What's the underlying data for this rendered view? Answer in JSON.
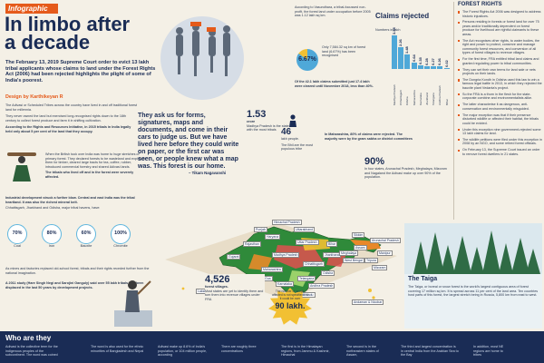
{
  "header": {
    "tag": "Infographic",
    "title_line1": "In limbo after",
    "title_line2": "a decade",
    "subtitle": "The February 13, 2019 Supreme Court order to evict 13 lakh tribal applicants whose claims to land under the Forest Rights Act (2006) had been rejected highlights the plight of some of India's poorest.",
    "byline": "Design by Karthikeyan R"
  },
  "intro": {
    "p1": "The Adivasi or Scheduled Tribes across the country have lived in and off traditional forest land for millennia.",
    "p2": "They never owned the land but exercised long-recognised rights down to the 18th century to collect forest produce and farm it in shifting cultivation.",
    "p3_bold": "According to the Rights and Resources Initiative, in 2015 tribals in India legally held only about 5 per cent of the land that they occupy."
  },
  "quote": {
    "text": "They ask us for forms, signatures, maps and documents, and come in their cars to judge us. But we have lived here before they could write on paper, or the first car was seen, or people knew what a map was. This forest is our home.",
    "attribution": "– Tikam Nagavanshi"
  },
  "stats_top": {
    "pct": "6.67%",
    "p1": "According to Vasundhara, a tribal-focussed non-profit, the forest land under occupation before 2005 was 1.12 lakh sq km.",
    "p2": "Only 7,584.32 sq km of forest land (6.67%) has been recognised",
    "p3": "Of the 42.1 lakh claims submitted just 17.4 lakh were cleared until November 2018, less than 40%."
  },
  "claims": {
    "title": "Claims rejected",
    "units": "Numbers in lakh"
  },
  "chart_data": {
    "type": "bar",
    "title": "Claims rejected",
    "ylabel": "Numbers in lakh",
    "categories": [
      "Madhya Pradesh",
      "Chhattisgarh",
      "Odisha",
      "Maharashtra",
      "Karnataka",
      "Jharkhand",
      "Telangana",
      "Andhra Pradesh",
      "Bihar"
    ],
    "values": [
      3.55,
      2.26,
      1.48,
      0.64,
      0.35,
      0.28,
      0.27,
      0.26,
      0.02
    ],
    "value_labels": [
      "3.55",
      "2.26",
      "1.48",
      "0.64",
      "0.35",
      "0.28",
      "0.27",
      "0.26",
      "0.02"
    ]
  },
  "forest_rights": {
    "title": "FOREST RIGHTS",
    "items": [
      "The Forest Rights Act 2006 was designed to address historic injustices.",
      "Persons residing in forests or forest land for over 75 years and/or traditionally dependent on forest produce for livelihood are rightful claimants to these areas.",
      "The Act recognises other rights, to water bodies, the right and power to protect, conserve and manage community forest resources, and conversion of all types of forest villages to revenue villages.",
      "For the first time, FRA entitled tribal land claims and granted regulating power to tribal communities.",
      "They can set their own terms for land sale or nets projects on their lands.",
      "The Dongria Kondh in Odisha used this law to win a famous legal battle in 2013, in which they rejected the bauxite plant Vedanta's project.",
      "So the FRA is a thorn in the flesh for the state-corporate combine and environmentalists alike.",
      "The latter characterise it as dangerous, anti-conservation and environmentally misguided.",
      "The major exception was that if their presence disturbed wildlife or affected their habitat, the tribals could be evicted.",
      "Under this exception nine government-rejected some 13 lakh claims for land.",
      "The wildlife petitions were filed under this exception in 2008 by an NGO, and some retired forest officials.",
      "On February 13, the Supreme Court issued an order to remove forest dwellers in 21 states."
    ]
  },
  "mp_stat": {
    "value": "1.53",
    "caption": "crore",
    "desc": "Madhya Pradesh is the state with the most tribals"
  },
  "bhil_stat": {
    "value": "46",
    "caption": "lakh people.",
    "desc": "The Bhil are the most populous tribe"
  },
  "maharashtra_note": "In Maharashtra, 80% of claims were rejected. The majority were by the gram sabha or district committees",
  "ninety": {
    "value": "90%",
    "desc": "In four states, Arunachal Pradesh, Meghalaya, Mizoram and Nagaland the Adivasi make up over 90% of the population."
  },
  "development": {
    "bold": "Industrial development struck a further blow. Central and east India was the tribal heartland. It was also the richest mineral belt.",
    "states": "Chhattisgarh, Jharkhand and Odisha, major tribal havens, have:",
    "note": "As mines and factories replaced old-school forest, tribals and their rights receded further from the national imagination.",
    "study_bold": "A 2011 study (Hare Singh Negi and Sarojini Ganguly) said over 55 lakh tribals had been displaced in the last 50 years by development projects."
  },
  "british": {
    "text": "When the British took over India was home to huge stretches of primary forest. They declared forests to be wasteland and exploited them for timber, cleared large tracts for tea, coffee, rubber, introduced commercial forestry and shared Adivasi lands.",
    "bold": "The tribals who lived off and in the forest were severely affected."
  },
  "minerals": [
    {
      "pct": "70%",
      "label": "Coal"
    },
    {
      "pct": "80%",
      "label": "Iron"
    },
    {
      "pct": "60%",
      "label": "Bauxite"
    },
    {
      "pct": "100%",
      "label": "Chromite"
    }
  ],
  "villages": {
    "value": "4,526",
    "unit": "forest villages.",
    "desc": "Most states are yet to identify them and turn them into revenue villages under FRA"
  },
  "ninety_lakh": {
    "text": "The number of people affected is not specified but it could be over",
    "value": "90 lakh."
  },
  "map_labels": [
    "Himachal Pradesh",
    "Punjab",
    "Uttarakhand",
    "Haryana",
    "Rajasthan",
    "Uttar Pradesh",
    "Bihar",
    "Gujarat",
    "Madhya Pradesh",
    "Jharkhand",
    "West Bengal",
    "Chhattisgarh",
    "Odisha",
    "Maharashtra",
    "Telangana",
    "Andhra Pradesh",
    "Karnataka",
    "Goa",
    "Tamil Nadu",
    "Kerala",
    "Lakshadweep",
    "Andaman & Nicobar",
    "Sikkim",
    "Assam",
    "Arunachal Pradesh",
    "Meghalaya",
    "Tripura",
    "Manipur",
    "Mizoram"
  ],
  "taiga": {
    "title": "The Taiga",
    "text": "The Taiga, or boreal or snow forest is the world's largest contiguous area of forest covering 17 million sq km. It is spread across 11 per cent of the land area. Ten countries host parts of this forest, the largest stretch being in Russia, 5,800 km from east to west."
  },
  "bottom": {
    "heading": "Who are they",
    "cols": [
      "Adivasi is the collective term for the indigenous peoples of the subcontinent. The word was coined",
      "The word is also used for the ethnic minorities of Bangladesh and Nepal",
      "Adivasi make up 8.6% of India's population, or 104 million people, according",
      "There are roughly three concentrations",
      "The first is in the Himalayan regions, from Jammu & Kashmir, Himachal",
      "The second is in the northeastern states of Assam,",
      "The third and largest concentration is in central India from the Arabian Sea to the Bay",
      "In addition, most NE regions are home to tribes"
    ]
  }
}
